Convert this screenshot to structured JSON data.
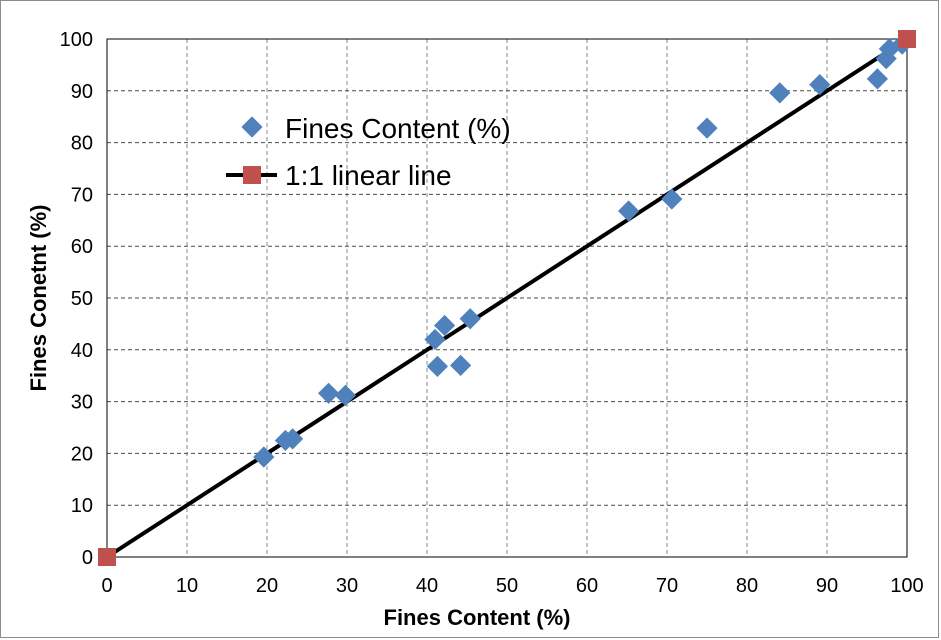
{
  "chart_data": {
    "type": "scatter",
    "xlabel": "Fines Content (%)",
    "ylabel": "Fines Conetnt (%)",
    "xlim": [
      0,
      100
    ],
    "ylim": [
      0,
      100
    ],
    "xticks": [
      0,
      10,
      20,
      30,
      40,
      50,
      60,
      70,
      80,
      90,
      100
    ],
    "yticks": [
      0,
      10,
      20,
      30,
      40,
      50,
      60,
      70,
      80,
      90,
      100
    ],
    "grid": true,
    "legend_position": "upper-left inside plot",
    "series": [
      {
        "name": "Fines Content (%)",
        "kind": "scatter",
        "marker": "diamond",
        "color": "#4f81bd",
        "points": [
          [
            19.6,
            19.3
          ],
          [
            22.3,
            22.5
          ],
          [
            23.2,
            22.8
          ],
          [
            27.7,
            31.6
          ],
          [
            29.8,
            31.2
          ],
          [
            41.0,
            42.0
          ],
          [
            41.3,
            36.8
          ],
          [
            42.2,
            44.7
          ],
          [
            44.2,
            37.0
          ],
          [
            45.4,
            46.0
          ],
          [
            65.2,
            66.8
          ],
          [
            70.6,
            69.1
          ],
          [
            75.0,
            82.8
          ],
          [
            84.1,
            89.6
          ],
          [
            89.1,
            91.2
          ],
          [
            96.3,
            92.3
          ],
          [
            97.4,
            96.2
          ],
          [
            97.8,
            98.1
          ],
          [
            99.4,
            99.0
          ]
        ]
      },
      {
        "name": "1:1 linear line",
        "kind": "line",
        "marker": "square",
        "color": "#c0504d",
        "line_color": "#000000",
        "points": [
          [
            0,
            0
          ],
          [
            100,
            100
          ]
        ]
      }
    ]
  }
}
